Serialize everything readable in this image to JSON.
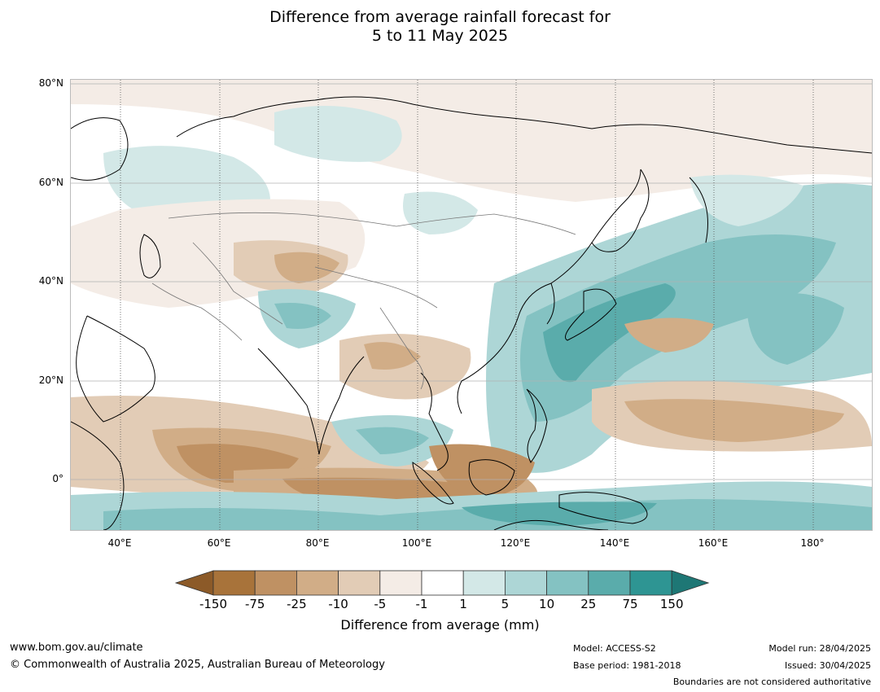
{
  "title": {
    "line1": "Difference from average rainfall forecast for",
    "line2": "5 to 11 May 2025"
  },
  "map": {
    "lat_labels": [
      "80°N",
      "60°N",
      "40°N",
      "20°N",
      "0°"
    ],
    "lon_labels": [
      "40°E",
      "60°E",
      "80°E",
      "100°E",
      "120°E",
      "140°E",
      "160°E",
      "180°"
    ],
    "extent": {
      "lon_min": 30,
      "lon_max": 192,
      "lat_min": -10,
      "lat_max": 80
    }
  },
  "legend": {
    "ticks": [
      "-150",
      "-75",
      "-25",
      "-10",
      "-5",
      "-1",
      "1",
      "5",
      "10",
      "25",
      "75",
      "150"
    ],
    "colors": [
      "#a8733a",
      "#bf9163",
      "#d1ad87",
      "#e2ccb6",
      "#f4ece6",
      "#ffffff",
      "#d3e8e7",
      "#add6d6",
      "#84c2c2",
      "#5aacab",
      "#2e9593"
    ],
    "under_color": "#8c5a28",
    "over_color": "#1e7775",
    "title": "Difference from average (mm)"
  },
  "footer": {
    "url": "www.bom.gov.au/climate",
    "copyright": "© Commonwealth of Australia 2025, Australian Bureau of Meteorology",
    "model": "Model: ACCESS-S2",
    "base_period": "Base period: 1981-2018",
    "model_run": "Model run: 28/04/2025",
    "issued": "Issued: 30/04/2025",
    "disclaimer": "Boundaries are not considered authoritative"
  }
}
